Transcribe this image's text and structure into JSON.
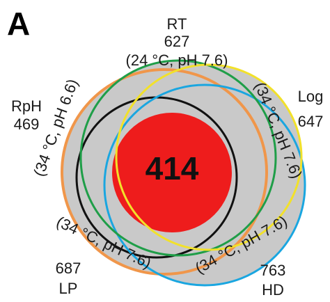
{
  "panel_label": "A",
  "center": {
    "count": "414",
    "fill_color": "#ee1c1c"
  },
  "background_fill": "#c9c9c9",
  "sets": [
    {
      "name": "RT",
      "count": "627",
      "condition": "(24 °C, pH 7.6)",
      "color": "#1f9e48"
    },
    {
      "name": "RpH",
      "count": "469",
      "condition": "(34 °C, pH 6.6)",
      "color": "#f0964a"
    },
    {
      "name": "Log",
      "count": "647",
      "condition": "(34 °C, pH 7.6)",
      "color": "#f2e12a"
    },
    {
      "name": "LP",
      "count": "687",
      "condition": "(34 °C, pH 7.6)",
      "color": "#111111"
    },
    {
      "name": "HD",
      "count": "763",
      "condition": "(34 °C, pH 7.6)",
      "color": "#1aa6e0"
    }
  ]
}
